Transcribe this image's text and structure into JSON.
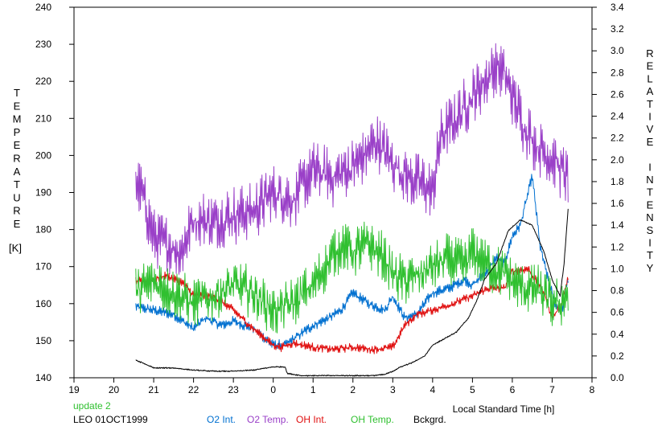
{
  "chart_data": {
    "type": "line",
    "xlabel": "Local Standard Time [h]",
    "x_ticks": [
      "19",
      "20",
      "21",
      "22",
      "23",
      "0",
      "1",
      "2",
      "3",
      "4",
      "5",
      "6",
      "7",
      "8"
    ],
    "xlim": [
      19,
      32
    ],
    "ylabel_left": "TEMPERATURE",
    "ylabel_left_unit": "[K]",
    "ylim_left": [
      140,
      240
    ],
    "left_ticks": [
      "140",
      "150",
      "160",
      "170",
      "180",
      "190",
      "200",
      "210",
      "220",
      "230",
      "240"
    ],
    "ylabel_right": "RELATIVE INTENSITY",
    "ylim_right": [
      0,
      3.4
    ],
    "right_ticks": [
      "0.0",
      "0.2",
      "0.4",
      "0.6",
      "0.8",
      "1.0",
      "1.2",
      "1.4",
      "1.6",
      "1.8",
      "2.0",
      "2.2",
      "2.4",
      "2.6",
      "2.8",
      "3.0",
      "3.2",
      "3.4"
    ],
    "update_label": "update 2",
    "station_label": "LEO 01OCT1999",
    "grid": false,
    "legend_position": "bottom",
    "series": [
      {
        "name": "O2 Int.",
        "axis": "right",
        "color": "#0070d0",
        "noise": 0.05,
        "x": [
          20.55,
          21.0,
          21.5,
          22.0,
          22.3,
          22.7,
          23.0,
          23.5,
          24.0,
          24.3,
          24.6,
          25.0,
          25.4,
          25.7,
          26.0,
          26.4,
          26.8,
          27.0,
          27.3,
          27.6,
          28.0,
          28.4,
          28.8,
          29.0,
          29.3,
          29.6,
          29.8,
          30.0,
          30.2,
          30.5,
          30.7,
          30.9,
          31.1,
          31.25,
          31.4
        ],
        "y": [
          0.65,
          0.62,
          0.58,
          0.45,
          0.55,
          0.48,
          0.52,
          0.45,
          0.3,
          0.3,
          0.38,
          0.48,
          0.55,
          0.62,
          0.78,
          0.68,
          0.62,
          0.75,
          0.55,
          0.58,
          0.78,
          0.82,
          0.9,
          0.85,
          0.95,
          1.1,
          1.05,
          1.3,
          1.4,
          1.85,
          1.2,
          0.9,
          0.65,
          0.62,
          0.9
        ]
      },
      {
        "name": "O2 Temp.",
        "axis": "left",
        "color": "#9a40c8",
        "noise": 8,
        "x": [
          20.55,
          20.7,
          21.0,
          21.3,
          21.7,
          22.0,
          22.5,
          23.0,
          23.5,
          24.0,
          24.5,
          25.0,
          25.5,
          26.0,
          26.3,
          26.6,
          27.0,
          27.4,
          27.8,
          28.0,
          28.2,
          28.6,
          29.0,
          29.3,
          29.6,
          29.8,
          30.0,
          30.3,
          30.6,
          30.9,
          31.1,
          31.3,
          31.4
        ],
        "y": [
          193,
          190,
          178,
          176,
          174,
          183,
          182,
          184,
          185,
          190,
          188,
          196,
          194,
          197,
          200,
          204,
          198,
          194,
          192,
          190,
          205,
          210,
          216,
          220,
          224,
          222,
          216,
          208,
          203,
          200,
          198,
          195,
          194
        ]
      },
      {
        "name": "OH Int.",
        "axis": "right",
        "color": "#e01010",
        "noise": 0.04,
        "x": [
          20.55,
          21.0,
          21.3,
          21.7,
          22.0,
          22.5,
          23.0,
          23.5,
          24.0,
          24.2,
          24.5,
          25.0,
          25.5,
          26.0,
          26.5,
          27.0,
          27.3,
          27.6,
          28.0,
          28.5,
          29.0,
          29.4,
          29.8,
          30.0,
          30.4,
          30.8,
          31.0,
          31.2,
          31.4
        ],
        "y": [
          0.88,
          0.9,
          0.94,
          0.88,
          0.76,
          0.75,
          0.62,
          0.45,
          0.3,
          0.28,
          0.32,
          0.28,
          0.26,
          0.28,
          0.26,
          0.28,
          0.48,
          0.58,
          0.62,
          0.68,
          0.75,
          0.82,
          0.82,
          0.98,
          1.0,
          0.78,
          0.55,
          0.65,
          0.92
        ]
      },
      {
        "name": "OH Temp.",
        "axis": "left",
        "color": "#30c030",
        "noise": 7,
        "x": [
          20.55,
          21.0,
          21.5,
          22.0,
          22.5,
          23.0,
          23.5,
          24.0,
          24.5,
          25.0,
          25.3,
          25.7,
          26.0,
          26.4,
          26.8,
          27.0,
          27.3,
          27.7,
          28.0,
          28.4,
          28.8,
          29.0,
          29.4,
          29.8,
          30.0,
          30.3,
          30.6,
          31.0,
          31.2,
          31.4
        ],
        "y": [
          163,
          166,
          163,
          160,
          162,
          165,
          163,
          158,
          160,
          165,
          170,
          176,
          174,
          176,
          172,
          168,
          166,
          168,
          170,
          172,
          170,
          174,
          170,
          168,
          166,
          164,
          164,
          160,
          160,
          163
        ]
      },
      {
        "name": "Bckgrd.",
        "axis": "right",
        "color": "#000000",
        "noise": 0.006,
        "x": [
          20.55,
          20.7,
          21.0,
          21.5,
          22.0,
          22.5,
          23.0,
          23.5,
          24.0,
          24.3,
          24.35,
          24.7,
          25.0,
          25.5,
          26.0,
          26.5,
          26.8,
          27.0,
          27.2,
          27.5,
          27.8,
          28.0,
          28.3,
          28.6,
          28.9,
          29.1,
          29.3,
          29.6,
          29.9,
          30.2,
          30.5,
          30.8,
          31.0,
          31.2,
          31.3,
          31.4
        ],
        "y": [
          0.16,
          0.14,
          0.09,
          0.09,
          0.07,
          0.06,
          0.06,
          0.07,
          0.1,
          0.1,
          0.04,
          0.02,
          0.02,
          0.02,
          0.02,
          0.02,
          0.03,
          0.06,
          0.1,
          0.14,
          0.2,
          0.3,
          0.36,
          0.42,
          0.55,
          0.7,
          0.9,
          1.05,
          1.35,
          1.45,
          1.4,
          1.15,
          0.9,
          0.75,
          1.05,
          1.55
        ]
      }
    ]
  }
}
